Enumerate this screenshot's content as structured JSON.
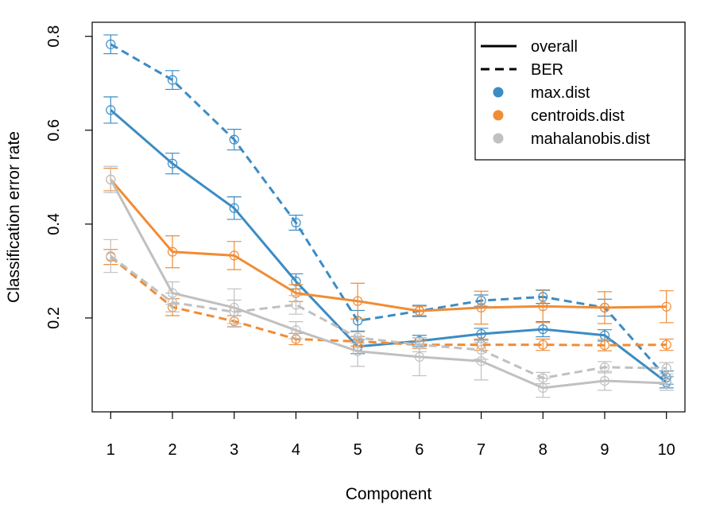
{
  "chart_data": {
    "type": "line",
    "title": "",
    "xlabel": "Component",
    "ylabel": "Classification error rate",
    "x": [
      1,
      2,
      3,
      4,
      5,
      6,
      7,
      8,
      9,
      10
    ],
    "xlim": [
      0.7,
      10.3
    ],
    "ylim": [
      0.0,
      0.83
    ],
    "yticks": [
      0.2,
      0.4,
      0.6,
      0.8
    ],
    "ytick_labels": [
      "0.2",
      "0.4",
      "0.6",
      "0.8"
    ],
    "grid": false,
    "legend_position": "top-right",
    "legend": {
      "linetypes": [
        {
          "label": "overall",
          "dash": "solid"
        },
        {
          "label": "BER",
          "dash": "dashed"
        }
      ],
      "distances": [
        {
          "label": "max.dist",
          "color": "#3C8CC4"
        },
        {
          "label": "centroids.dist",
          "color": "#F08C35"
        },
        {
          "label": "mahalanobis.dist",
          "color": "#C0C0C0"
        }
      ]
    },
    "series": [
      {
        "distance": "max.dist",
        "measure": "overall",
        "color": "#3C8CC4",
        "values": [
          0.643,
          0.529,
          0.434,
          0.278,
          0.139,
          0.151,
          0.166,
          0.176,
          0.163,
          0.063
        ],
        "errors": [
          0.028,
          0.022,
          0.024,
          0.016,
          0.015,
          0.012,
          0.012,
          0.016,
          0.012,
          0.012
        ]
      },
      {
        "distance": "max.dist",
        "measure": "BER",
        "color": "#3C8CC4",
        "values": [
          0.783,
          0.707,
          0.58,
          0.403,
          0.194,
          0.215,
          0.237,
          0.245,
          0.222,
          0.073
        ],
        "errors": [
          0.02,
          0.02,
          0.022,
          0.016,
          0.022,
          0.012,
          0.012,
          0.014,
          0.018,
          0.014
        ]
      },
      {
        "distance": "centroids.dist",
        "measure": "overall",
        "color": "#F08C35",
        "values": [
          0.495,
          0.341,
          0.333,
          0.253,
          0.236,
          0.215,
          0.222,
          0.225,
          0.222,
          0.224
        ],
        "errors": [
          0.024,
          0.034,
          0.03,
          0.018,
          0.038,
          0.01,
          0.035,
          0.035,
          0.034,
          0.034
        ]
      },
      {
        "distance": "centroids.dist",
        "measure": "BER",
        "color": "#F08C35",
        "values": [
          0.33,
          0.223,
          0.193,
          0.155,
          0.15,
          0.143,
          0.143,
          0.143,
          0.142,
          0.143
        ],
        "errors": [
          0.016,
          0.018,
          0.012,
          0.012,
          0.01,
          0.008,
          0.012,
          0.012,
          0.012,
          0.012
        ]
      },
      {
        "distance": "mahalanobis.dist",
        "measure": "overall",
        "color": "#C0C0C0",
        "values": [
          0.495,
          0.253,
          0.222,
          0.174,
          0.129,
          0.117,
          0.108,
          0.051,
          0.066,
          0.061
        ],
        "errors": [
          0.028,
          0.024,
          0.04,
          0.018,
          0.032,
          0.04,
          0.04,
          0.02,
          0.02,
          0.015
        ]
      },
      {
        "distance": "mahalanobis.dist",
        "measure": "BER",
        "color": "#C0C0C0",
        "values": [
          0.332,
          0.233,
          0.213,
          0.228,
          0.158,
          0.143,
          0.132,
          0.072,
          0.095,
          0.093
        ],
        "errors": [
          0.035,
          0.02,
          0.025,
          0.02,
          0.012,
          0.015,
          0.02,
          0.012,
          0.012,
          0.012
        ]
      }
    ]
  }
}
